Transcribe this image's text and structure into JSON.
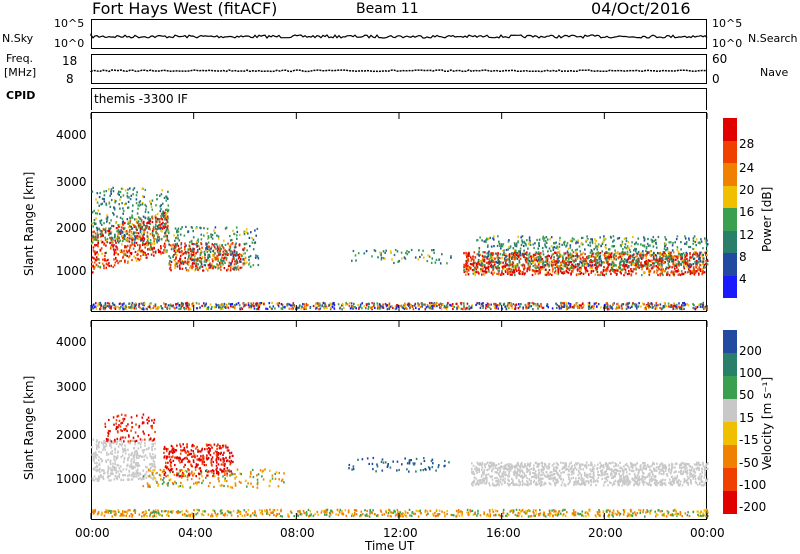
{
  "header": {
    "station": "Fort Hays West (fitACF)",
    "beam": "Beam 11",
    "date": "04/Oct/2016"
  },
  "top_panels": {
    "nsky_label": "N.Sky",
    "nsky_ticks": [
      "10^5",
      "10^0"
    ],
    "nsearch_label": "N.Search",
    "nsearch_ticks": [
      "10^5",
      "10^0"
    ],
    "freq_label": "Freq.",
    "freq_unit": "[MHz]",
    "freq_ticks": [
      "18",
      "8"
    ],
    "nave_label": "Nave",
    "nave_ticks": [
      "60",
      "0"
    ],
    "cpid_label": "CPID",
    "cpid_value": "themis -3300 IF"
  },
  "colors": {
    "power": [
      "#1a1aff",
      "#224aa0",
      "#2a7f6a",
      "#3aa050",
      "#f0c000",
      "#f08000",
      "#f04000",
      "#e00000"
    ],
    "velocity": [
      "#e00000",
      "#f04000",
      "#f08000",
      "#f0c000",
      "#c8c8c8",
      "#3aa050",
      "#2a7f6a",
      "#224aa0"
    ]
  },
  "chart_data": [
    {
      "type": "heatmap",
      "name": "power",
      "ylabel": "Slant Range [km]",
      "yticks": [
        "4000",
        "3000",
        "2000",
        "1000"
      ],
      "ylim": [
        200,
        4500
      ],
      "colorbar_label": "Power [dB]",
      "colorbar_ticks": [
        "28",
        "24",
        "20",
        "16",
        "12",
        "8",
        "4"
      ],
      "clim": [
        0,
        30
      ]
    },
    {
      "type": "heatmap",
      "name": "velocity",
      "ylabel": "Slant Range [km]",
      "yticks": [
        "4000",
        "3000",
        "2000",
        "1000"
      ],
      "ylim": [
        200,
        4500
      ],
      "colorbar_label": "Velocity [m s⁻¹]",
      "colorbar_ticks": [
        "200",
        "100",
        "50",
        "15",
        "-15",
        "-50",
        "-100",
        "-200"
      ],
      "clim": [
        -250,
        250
      ]
    }
  ],
  "xaxis": {
    "label": "Time UT",
    "ticks": [
      "00:00",
      "04:00",
      "08:00",
      "12:00",
      "16:00",
      "20:00",
      "00:00"
    ]
  }
}
